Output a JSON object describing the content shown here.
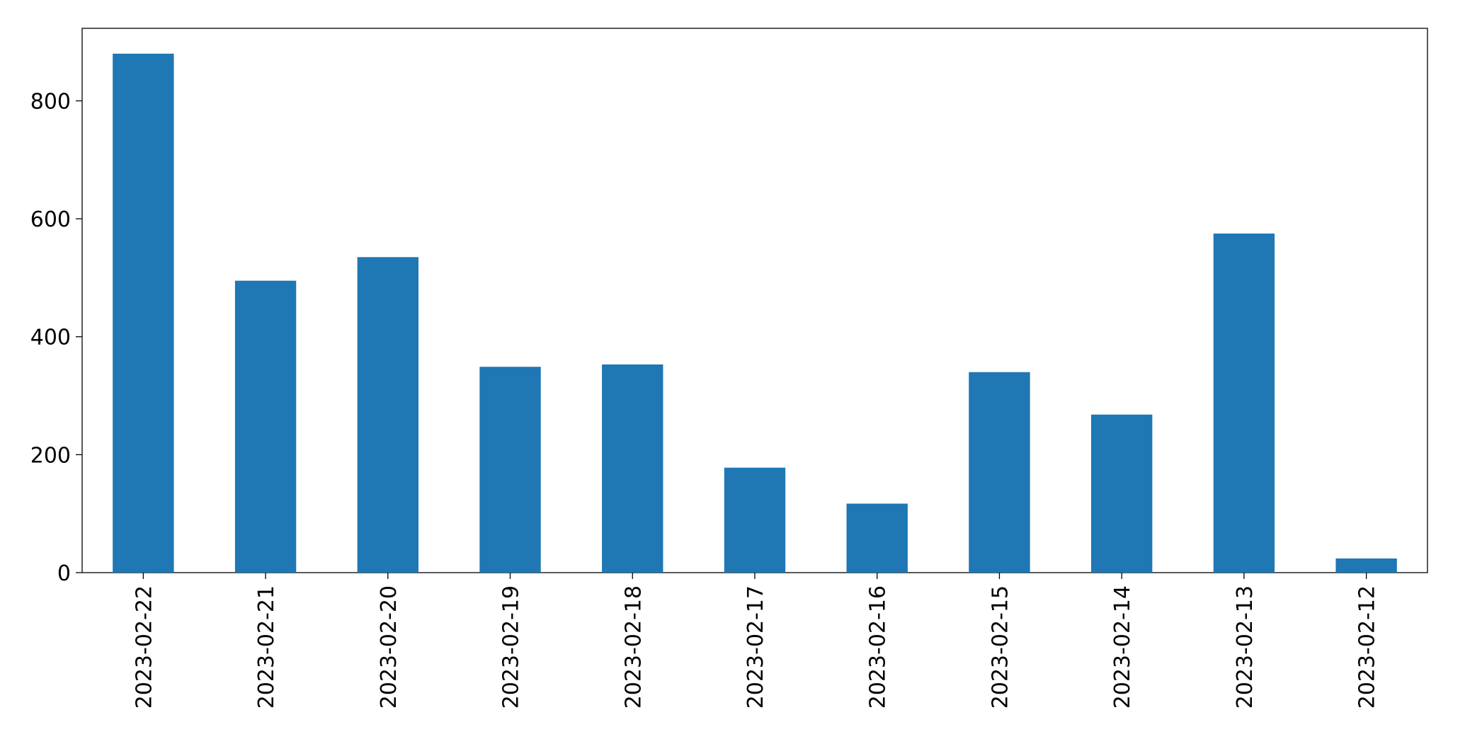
{
  "chart_data": {
    "type": "bar",
    "categories": [
      "2023-02-22",
      "2023-02-21",
      "2023-02-20",
      "2023-02-19",
      "2023-02-18",
      "2023-02-17",
      "2023-02-16",
      "2023-02-15",
      "2023-02-14",
      "2023-02-13",
      "2023-02-12"
    ],
    "values": [
      880,
      495,
      535,
      349,
      353,
      178,
      117,
      340,
      268,
      575,
      24
    ],
    "color": "#1f77b4",
    "ylim": [
      0,
      923
    ],
    "yticks": [
      0,
      200,
      400,
      600,
      800
    ],
    "grid": false
  }
}
